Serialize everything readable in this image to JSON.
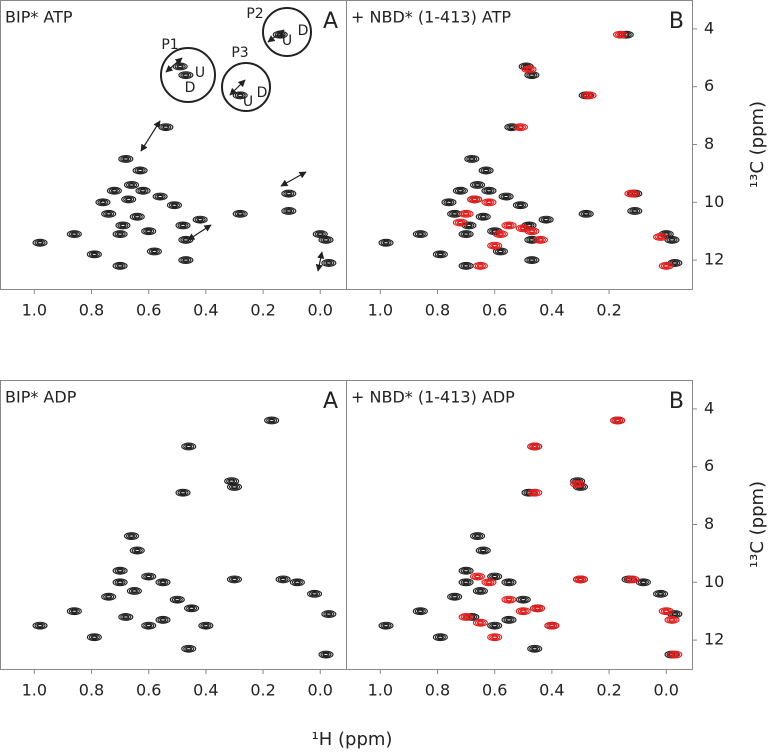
{
  "chart_data": [
    {
      "type": "contour",
      "title": "BIP* ATP",
      "title_color": "#222222",
      "panel": "A",
      "xlim": [
        1.12,
        -0.09
      ],
      "ylim": [
        13,
        3
      ],
      "xticks": [
        {
          "value": 1,
          "label": "1.0"
        },
        0.8,
        0.6,
        0.4,
        0.2,
        {
          "value": 0,
          "label": "0.0"
        }
      ],
      "annotations": [
        "P1",
        "U",
        "D",
        "P2",
        "U",
        "D",
        "P3",
        "D",
        "U"
      ],
      "annotation_colors": [
        "#222222",
        "#e02020",
        "#222222",
        "#222222",
        "#e02020",
        "#222222",
        "#222222",
        "#222222",
        "#e02020"
      ],
      "series": [
        {
          "color": "#222222",
          "x": [
            0.98,
            0.79,
            0.68,
            0.63,
            0.54,
            0.51,
            0.48,
            0.47,
            0.42,
            0.58,
            0.7,
            0.47,
            0.28,
            0.11,
            0.0,
            -0.02,
            -0.03,
            0.67,
            0.74,
            0.6,
            0.7,
            0.86,
            0.11,
            0.49,
            0.47,
            0.28,
            0.14,
            0.66,
            0.72,
            0.62,
            0.56,
            0.64,
            0.76,
            0.69
          ],
          "values": [
            11.4,
            11.8,
            8.5,
            8.9,
            7.4,
            10.1,
            10.8,
            11.3,
            10.6,
            11.7,
            12.2,
            12.0,
            10.4,
            10.3,
            11.1,
            11.3,
            12.1,
            9.9,
            10.4,
            11.0,
            11.1,
            11.1,
            9.7,
            5.3,
            5.6,
            6.3,
            4.2,
            9.4,
            9.6,
            9.6,
            9.8,
            10.5,
            10.0,
            10.8
          ]
        }
      ]
    },
    {
      "type": "contour",
      "title": "+ NBD* (1-413) ATP",
      "title_color": "#e02020",
      "panel": "B",
      "xlim": [
        1.12,
        -0.09
      ],
      "ylim": [
        13,
        3
      ],
      "xticks": [
        {
          "value": 1,
          "label": "1.0"
        },
        0.8,
        0.6,
        0.4,
        0.2
      ],
      "yticks": [
        4,
        6,
        8,
        10,
        12
      ],
      "ylabel": "¹³C (ppm)",
      "series": [
        {
          "color": "#222222",
          "x": [
            0.98,
            0.79,
            0.68,
            0.63,
            0.54,
            0.51,
            0.48,
            0.47,
            0.42,
            0.58,
            0.7,
            0.47,
            0.28,
            0.11,
            0.0,
            -0.02,
            -0.03,
            0.67,
            0.74,
            0.6,
            0.7,
            0.86,
            0.11,
            0.49,
            0.47,
            0.28,
            0.14,
            0.66,
            0.72,
            0.62,
            0.56,
            0.64,
            0.76,
            0.69
          ],
          "values": [
            11.4,
            11.8,
            8.5,
            8.9,
            7.4,
            10.1,
            10.8,
            11.3,
            10.6,
            11.7,
            12.2,
            12.0,
            10.4,
            10.3,
            11.1,
            11.3,
            12.1,
            9.9,
            10.4,
            11.0,
            11.1,
            11.1,
            9.7,
            5.3,
            5.6,
            6.3,
            4.2,
            9.4,
            9.6,
            9.6,
            9.8,
            10.5,
            10.0,
            10.8
          ]
        },
        {
          "color": "#e02020",
          "x": [
            0.67,
            0.62,
            0.7,
            0.55,
            0.5,
            0.47,
            0.44,
            0.6,
            0.65,
            0.51,
            0.48,
            0.27,
            0.16,
            0.12,
            0.02,
            0.0,
            0.72,
            0.58
          ],
          "values": [
            9.9,
            10.0,
            10.4,
            10.8,
            10.9,
            11.0,
            11.3,
            11.5,
            12.2,
            7.4,
            5.4,
            6.3,
            4.2,
            9.7,
            11.2,
            12.2,
            10.7,
            11.1
          ]
        }
      ]
    },
    {
      "type": "contour",
      "title": "BIP* ADP",
      "title_color": "#222222",
      "panel": "A",
      "xlim": [
        1.12,
        -0.09
      ],
      "ylim": [
        13,
        3
      ],
      "xticks": [
        {
          "value": 1,
          "label": "1.0"
        },
        0.8,
        0.6,
        0.4,
        0.2,
        {
          "value": 0,
          "label": "0.0"
        }
      ],
      "xlabel": "¹H (ppm)",
      "series": [
        {
          "color": "#222222",
          "x": [
            0.98,
            0.79,
            0.66,
            0.64,
            0.7,
            0.6,
            0.55,
            0.5,
            0.45,
            0.46,
            0.3,
            0.31,
            0.17,
            0.3,
            0.13,
            0.08,
            0.02,
            -0.03,
            0.48,
            0.4,
            0.6,
            0.68,
            0.74,
            0.86,
            0.7,
            0.65,
            0.55,
            0.46,
            -0.02
          ],
          "values": [
            11.5,
            11.9,
            8.4,
            8.9,
            9.6,
            9.8,
            10.0,
            10.6,
            10.9,
            5.3,
            6.7,
            6.5,
            4.4,
            9.9,
            9.9,
            10.0,
            10.4,
            11.1,
            6.9,
            11.5,
            11.5,
            11.2,
            10.5,
            11.0,
            10.0,
            10.3,
            11.3,
            12.3,
            12.5
          ]
        }
      ]
    },
    {
      "type": "contour",
      "title": "+ NBD* (1-413) ADP",
      "title_color": "#e02020",
      "panel": "B",
      "xlim": [
        1.12,
        -0.09
      ],
      "ylim": [
        13,
        3
      ],
      "xticks": [
        {
          "value": 1,
          "label": "1.0"
        },
        0.8,
        0.6,
        0.4,
        0.2,
        {
          "value": 0,
          "label": "0.0"
        }
      ],
      "yticks": [
        4,
        6,
        8,
        10,
        12
      ],
      "ylabel": "¹³C (ppm)",
      "series": [
        {
          "color": "#222222",
          "x": [
            0.98,
            0.79,
            0.66,
            0.64,
            0.7,
            0.6,
            0.55,
            0.5,
            0.45,
            0.46,
            0.3,
            0.31,
            0.17,
            0.3,
            0.13,
            0.08,
            0.02,
            -0.03,
            0.48,
            0.4,
            0.6,
            0.68,
            0.74,
            0.86,
            0.7,
            0.65,
            0.55,
            0.46,
            -0.02
          ],
          "values": [
            11.5,
            11.9,
            8.4,
            8.9,
            9.6,
            9.8,
            10.0,
            10.6,
            10.9,
            5.3,
            6.7,
            6.5,
            4.4,
            9.9,
            9.9,
            10.0,
            10.4,
            11.1,
            6.9,
            11.5,
            11.5,
            11.2,
            10.5,
            11.0,
            10.0,
            10.3,
            11.3,
            12.3,
            12.5
          ]
        },
        {
          "color": "#e02020",
          "x": [
            0.46,
            0.46,
            0.31,
            0.3,
            0.17,
            0.12,
            0.3,
            0.66,
            0.62,
            0.55,
            0.5,
            0.45,
            0.4,
            0.65,
            0.7,
            0.6,
            0.0,
            -0.02,
            -0.03
          ],
          "values": [
            5.3,
            6.9,
            6.6,
            9.9,
            4.4,
            9.9,
            9.9,
            9.8,
            10.0,
            10.6,
            11.0,
            10.9,
            11.5,
            11.4,
            11.2,
            11.9,
            11.0,
            11.3,
            12.5
          ]
        }
      ]
    }
  ]
}
